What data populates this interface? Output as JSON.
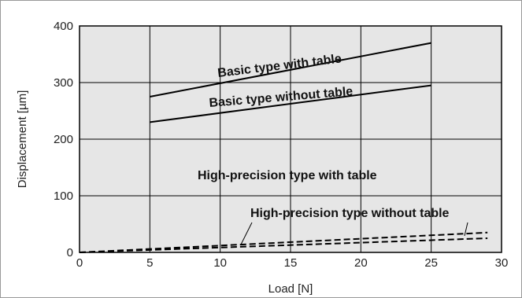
{
  "chart_data": {
    "type": "line",
    "xlabel": "Load [N]",
    "ylabel": "Displacement [µm]",
    "xlim": [
      0,
      30
    ],
    "ylim": [
      0,
      400
    ],
    "xticks": [
      "0",
      "5",
      "10",
      "15",
      "20",
      "25",
      "30"
    ],
    "yticks": [
      "0",
      "100",
      "200",
      "300",
      "400"
    ],
    "grid": true,
    "legend": "none (labels placed on chart)",
    "background_color": "#e6e6e6",
    "series": [
      {
        "name": "Basic type with table",
        "style": "solid",
        "x": [
          5,
          25
        ],
        "y": [
          275,
          370
        ]
      },
      {
        "name": "Basic type without table",
        "style": "solid",
        "x": [
          5,
          25
        ],
        "y": [
          230,
          295
        ]
      },
      {
        "name": "High-precision type with table",
        "style": "dashed",
        "x": [
          0,
          29
        ],
        "y": [
          0,
          35
        ]
      },
      {
        "name": "High-precision type without table",
        "style": "dashed",
        "x": [
          0,
          29
        ],
        "y": [
          0,
          25
        ]
      }
    ]
  }
}
